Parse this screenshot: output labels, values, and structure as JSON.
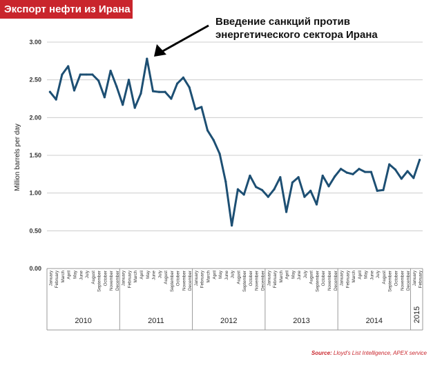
{
  "title": "Экспорт нефти из Ирана",
  "annotation": "Введение санкций против\nэнергетического сектора Ирана",
  "source": {
    "label": "Source:",
    "text": "Lloyd's List Intelligence, APEX service"
  },
  "colors": {
    "line": "#1d4f73",
    "title_bg": "#c9252c",
    "axis": "#999999",
    "grid": "#cccccc"
  },
  "chart_data": {
    "type": "line",
    "ylabel": "Million barrels per day",
    "ylim": [
      0,
      3
    ],
    "yticks": [
      "0.00",
      "0.50",
      "1.00",
      "1.50",
      "2.00",
      "2.50",
      "3.00"
    ],
    "grid": true,
    "months": [
      "January",
      "February",
      "March",
      "April",
      "May",
      "June",
      "July",
      "August",
      "September",
      "October",
      "November",
      "December"
    ],
    "years": [
      {
        "label": "2010",
        "months": 12
      },
      {
        "label": "2011",
        "months": 12
      },
      {
        "label": "2012",
        "months": 12
      },
      {
        "label": "2013",
        "months": 12
      },
      {
        "label": "2014",
        "months": 12
      },
      {
        "label": "2015",
        "months": 2
      }
    ],
    "series": [
      {
        "values": [
          2.34,
          2.24,
          2.57,
          2.68,
          2.36,
          2.57,
          2.57,
          2.57,
          2.49,
          2.27,
          2.62,
          2.41,
          2.17,
          2.5,
          2.13,
          2.32,
          2.78,
          2.35,
          2.34,
          2.34,
          2.25,
          2.45,
          2.53,
          2.4,
          2.11,
          2.14,
          1.83,
          1.7,
          1.52,
          1.15,
          0.57,
          1.05,
          0.98,
          1.23,
          1.08,
          1.04,
          0.95,
          1.05,
          1.21,
          0.75,
          1.14,
          1.21,
          0.95,
          1.03,
          0.85,
          1.23,
          1.09,
          1.22,
          1.32,
          1.27,
          1.25,
          1.32,
          1.28,
          1.28,
          1.03,
          1.04,
          1.38,
          1.31,
          1.19,
          1.29,
          1.2,
          1.44
        ]
      }
    ]
  }
}
